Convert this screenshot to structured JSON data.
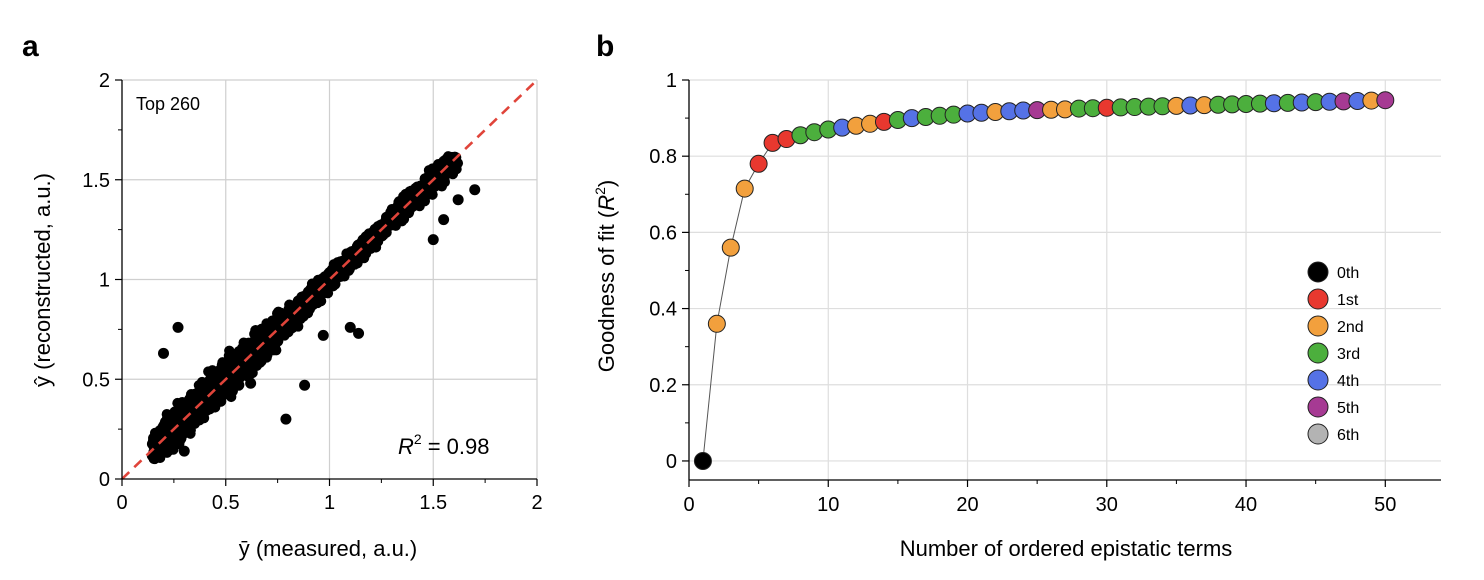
{
  "panels": {
    "a": {
      "label": "a"
    },
    "b": {
      "label": "b"
    }
  },
  "chart_data": [
    {
      "panel": "a",
      "type": "scatter",
      "xlabel": "ȳ (measured, a.u.)",
      "ylabel": "ŷ (reconstructed, a.u.)",
      "xlim": [
        0,
        2
      ],
      "ylim": [
        0,
        2
      ],
      "xticks": [
        "0",
        "0.5",
        "1",
        "1.5",
        "2"
      ],
      "yticks": [
        "0",
        "0.5",
        "1",
        "1.5",
        "2"
      ],
      "grid": true,
      "annotation_top": "Top 260",
      "r2_symbol": "R",
      "r2_exponent": "2",
      "r2_value": "= 0.98",
      "reference_line": {
        "style": "dashed",
        "color": "#e0443a",
        "from": [
          0,
          0
        ],
        "to": [
          2,
          2
        ]
      },
      "point_color": "#000000",
      "point_cloud": {
        "x_range": [
          0.15,
          1.65
        ],
        "y_spread_about_identity": 0.06,
        "approx_points": 2600
      },
      "outliers": [
        [
          0.27,
          0.76
        ],
        [
          0.2,
          0.63
        ],
        [
          0.42,
          0.42
        ],
        [
          0.79,
          0.3
        ],
        [
          0.88,
          0.47
        ],
        [
          1.1,
          0.76
        ],
        [
          1.14,
          0.73
        ],
        [
          1.42,
          1.45
        ],
        [
          1.55,
          1.3
        ],
        [
          1.62,
          1.4
        ],
        [
          1.7,
          1.45
        ],
        [
          1.5,
          1.2
        ],
        [
          0.3,
          0.14
        ],
        [
          0.62,
          0.48
        ],
        [
          0.97,
          0.72
        ]
      ]
    },
    {
      "panel": "b",
      "type": "line",
      "xlabel": "Number of ordered epistatic terms",
      "ylabel": "Goodness of fit (R²)",
      "ylabel_parts": {
        "before": "Goodness of fit (",
        "symbol": "R",
        "exponent": "2",
        "after": ")"
      },
      "xlim": [
        0,
        54
      ],
      "ylim": [
        -0.05,
        1.0
      ],
      "xticks": [
        "0",
        "10",
        "20",
        "30",
        "40",
        "50"
      ],
      "yticks": [
        "0",
        "0.2",
        "0.4",
        "0.6",
        "0.8",
        "1"
      ],
      "grid": true,
      "legend_position": "bottom-right",
      "legend": [
        {
          "label": "0th",
          "color": "#000000"
        },
        {
          "label": "1st",
          "color": "#e8382f"
        },
        {
          "label": "2nd",
          "color": "#f2a03d"
        },
        {
          "label": "3rd",
          "color": "#4caf3d"
        },
        {
          "label": "4th",
          "color": "#5572e6"
        },
        {
          "label": "5th",
          "color": "#a63a93"
        },
        {
          "label": "6th",
          "color": "#b3b3b3"
        }
      ],
      "series": [
        {
          "x": [
            1,
            2,
            3,
            4,
            5,
            6,
            7,
            8,
            9,
            10,
            11,
            12,
            13,
            14,
            15,
            16,
            17,
            18,
            19,
            20,
            21,
            22,
            23,
            24,
            25,
            26,
            27,
            28,
            29,
            30,
            31,
            32,
            33,
            34,
            35,
            36,
            37,
            38,
            39,
            40,
            41,
            42,
            43,
            44,
            45,
            46,
            47,
            48,
            49,
            50
          ],
          "y": [
            0.0,
            0.36,
            0.56,
            0.715,
            0.78,
            0.835,
            0.845,
            0.855,
            0.863,
            0.87,
            0.875,
            0.88,
            0.885,
            0.89,
            0.895,
            0.9,
            0.903,
            0.906,
            0.909,
            0.912,
            0.914,
            0.916,
            0.918,
            0.92,
            0.921,
            0.922,
            0.923,
            0.925,
            0.926,
            0.927,
            0.928,
            0.929,
            0.93,
            0.931,
            0.932,
            0.933,
            0.934,
            0.935,
            0.936,
            0.937,
            0.938,
            0.939,
            0.94,
            0.941,
            0.942,
            0.943,
            0.944,
            0.945,
            0.946,
            0.947
          ],
          "order": [
            0,
            2,
            2,
            2,
            1,
            1,
            1,
            3,
            3,
            3,
            4,
            2,
            2,
            1,
            3,
            4,
            3,
            3,
            3,
            4,
            4,
            2,
            4,
            4,
            5,
            2,
            2,
            3,
            3,
            1,
            3,
            3,
            3,
            3,
            2,
            4,
            2,
            3,
            3,
            3,
            3,
            4,
            3,
            4,
            3,
            4,
            5,
            4,
            2,
            5
          ]
        }
      ]
    }
  ]
}
